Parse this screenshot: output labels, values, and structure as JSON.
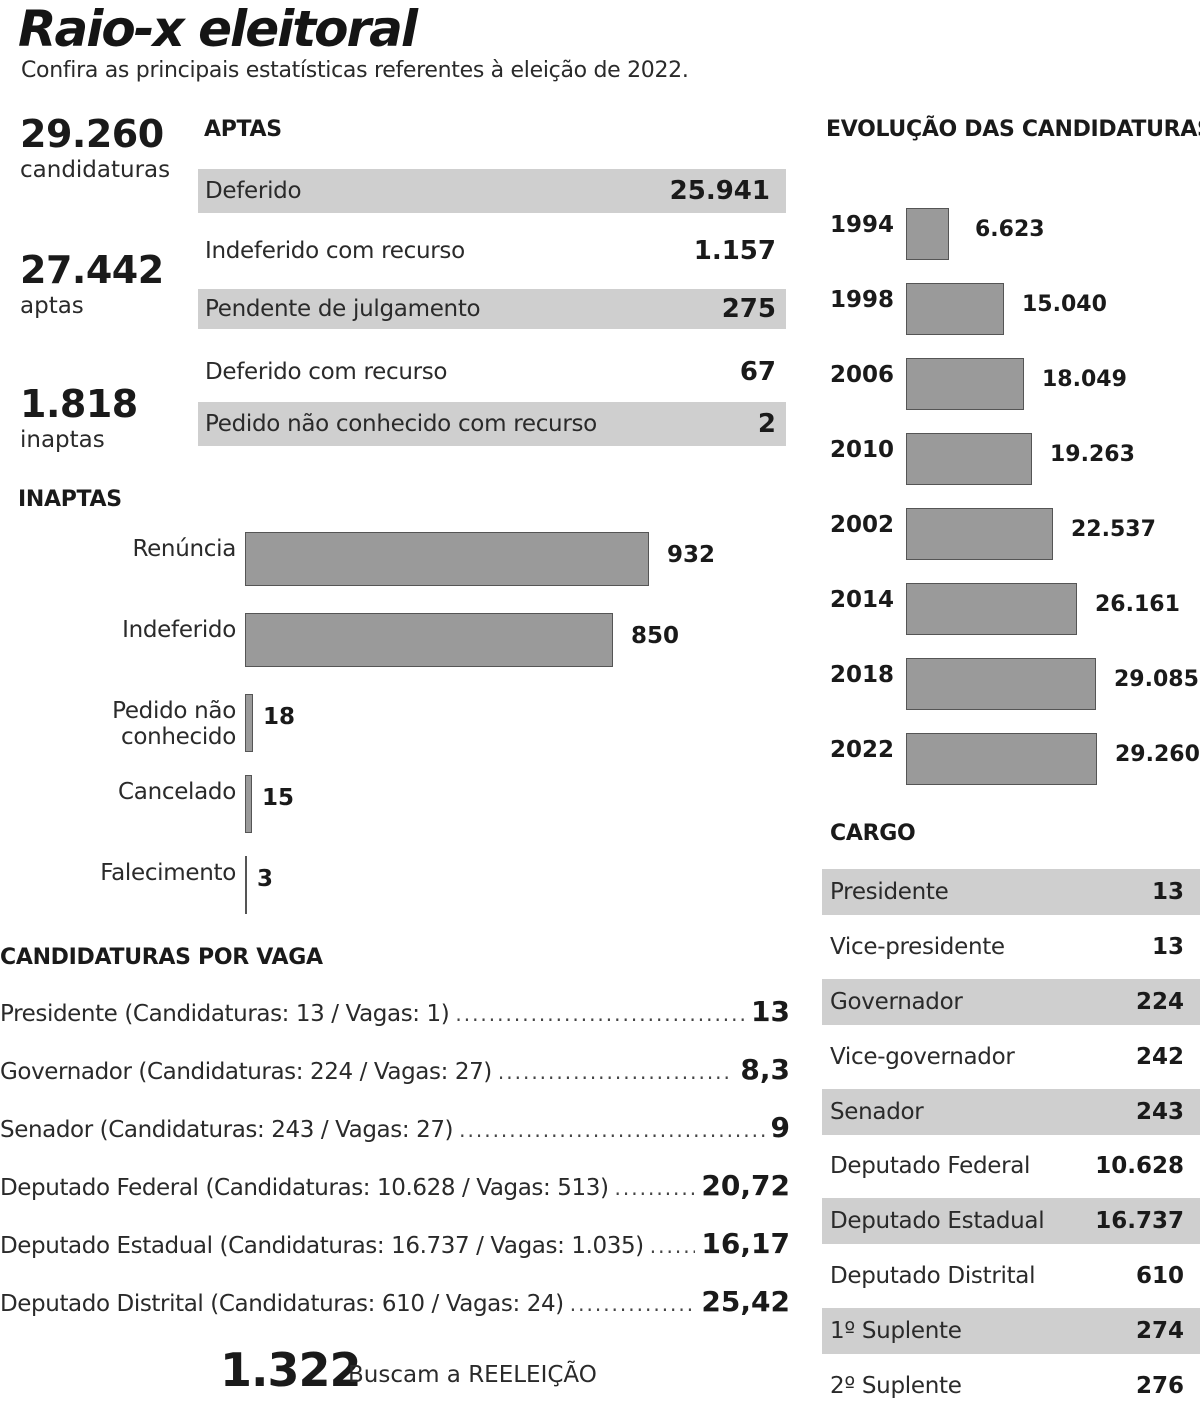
{
  "header": {
    "title": "Raio-x eleitoral",
    "subtitle": "Confira as principais estatísticas referentes à eleição de 2022."
  },
  "totals": [
    {
      "value": "29.260",
      "label": "candidaturas"
    },
    {
      "value": "27.442",
      "label": "aptas"
    },
    {
      "value": "1.818",
      "label": "inaptas"
    }
  ],
  "reelection": {
    "value": "1.322",
    "label": "Buscam a REELEIÇÃO"
  },
  "colors": {
    "bar": "#9a9a9a",
    "band": "#cfcfcf",
    "text": "#1a1a1a"
  },
  "chart_data": [
    {
      "type": "table",
      "title": "APTAS",
      "rows": [
        {
          "label": "Deferido",
          "value": "25.941"
        },
        {
          "label": "Indeferido com recurso",
          "value": "1.157"
        },
        {
          "label": "Pendente de julgamento",
          "value": "275"
        },
        {
          "label": "Deferido com recurso",
          "value": "67"
        },
        {
          "label": "Pedido não conhecido com recurso",
          "value": "2"
        }
      ]
    },
    {
      "type": "bar",
      "orientation": "horizontal",
      "title": "INAPTAS",
      "categories": [
        "Renúncia",
        "Indeferido",
        "Pedido não conhecido",
        "Cancelado",
        "Falecimento"
      ],
      "values": [
        932,
        850,
        18,
        15,
        3
      ],
      "labels": [
        "932",
        "850",
        "18",
        "15",
        "3"
      ],
      "xlim": [
        0,
        932
      ]
    },
    {
      "type": "bar",
      "orientation": "horizontal",
      "title": "EVOLUÇÃO DAS CANDIDATURAS",
      "categories": [
        "1994",
        "1998",
        "2006",
        "2010",
        "2002",
        "2014",
        "2018",
        "2022"
      ],
      "values": [
        6623,
        15040,
        18049,
        19263,
        22537,
        26161,
        29085,
        29260
      ],
      "labels": [
        "6.623",
        "15.040",
        "18.049",
        "19.263",
        "22.537",
        "26.161",
        "29.085",
        "29.260"
      ],
      "xlim": [
        0,
        29260
      ]
    },
    {
      "type": "table",
      "title": "CANDIDATURAS POR VAGA",
      "rows": [
        {
          "label": "Presidente (Candidaturas: 13 / Vagas: 1)",
          "value": "13"
        },
        {
          "label": "Governador (Candidaturas: 224 / Vagas: 27)",
          "value": "8,3"
        },
        {
          "label": "Senador (Candidaturas: 243 / Vagas: 27)",
          "value": "9"
        },
        {
          "label": "Deputado Federal (Candidaturas: 10.628 / Vagas: 513)",
          "value": "20,72"
        },
        {
          "label": "Deputado Estadual (Candidaturas: 16.737 / Vagas: 1.035)",
          "value": "16,17"
        },
        {
          "label": "Deputado Distrital (Candidaturas: 610 / Vagas: 24)",
          "value": "25,42"
        }
      ]
    },
    {
      "type": "table",
      "title": "CARGO",
      "rows": [
        {
          "label": "Presidente",
          "value": "13"
        },
        {
          "label": "Vice-presidente",
          "value": "13"
        },
        {
          "label": "Governador",
          "value": "224"
        },
        {
          "label": "Vice-governador",
          "value": "242"
        },
        {
          "label": "Senador",
          "value": "243"
        },
        {
          "label": "Deputado Federal",
          "value": "10.628"
        },
        {
          "label": "Deputado Estadual",
          "value": "16.737"
        },
        {
          "label": "Deputado Distrital",
          "value": "610"
        },
        {
          "label": "1º Suplente",
          "value": "274"
        },
        {
          "label": "2º Suplente",
          "value": "276"
        }
      ]
    }
  ]
}
